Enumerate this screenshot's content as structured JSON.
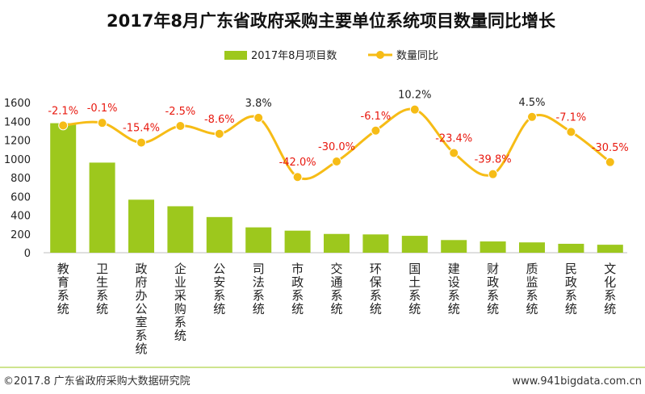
{
  "chart_data": {
    "type": "bar+line",
    "title": "2017年8月广东省政府采购主要单位系统项目数量同比增长",
    "categories": [
      "教育系统",
      "卫生系统",
      "政府办公室系统",
      "企业采购系统",
      "公安系统",
      "司法系统",
      "市政系统",
      "交通系统",
      "环保系统",
      "国土系统",
      "建设系统",
      "财政系统",
      "质监系统",
      "民政系统",
      "文化系统"
    ],
    "series": [
      {
        "name": "2017年8月项目数",
        "type": "bar",
        "axis": "left",
        "values": [
          1380,
          960,
          565,
          495,
          380,
          270,
          235,
          200,
          195,
          180,
          135,
          120,
          110,
          95,
          85
        ]
      },
      {
        "name": "数量同比",
        "type": "line",
        "axis": "right",
        "values": [
          -2.1,
          -0.1,
          -15.4,
          -2.5,
          -8.6,
          3.8,
          -42.0,
          -30.0,
          -6.1,
          10.2,
          -23.4,
          -39.8,
          4.5,
          -7.1,
          -30.5
        ],
        "labels": [
          "-2.1%",
          "-0.1%",
          "-15.4%",
          "-2.5%",
          "-8.6%",
          "3.8%",
          "-42.0%",
          "-30.0%",
          "-6.1%",
          "10.2%",
          "-23.4%",
          "-39.8%",
          "4.5%",
          "-7.1%",
          "-30.5%"
        ]
      }
    ],
    "yticks": [
      "0",
      "200",
      "400",
      "600",
      "800",
      "1000",
      "1200",
      "1400",
      "1600"
    ],
    "ylim": [
      0,
      1600
    ],
    "legend_position": "top-center"
  },
  "footer": {
    "copyright": "©2017.8 广东省政府采购大数据研究院",
    "website": "www.941bigdata.com.cn"
  },
  "colors": {
    "bar": "#9dc81d",
    "line": "#f6bc16",
    "positive_label": "#222222",
    "negative_label": "#e8190f",
    "axis": "#bfbfbf"
  }
}
